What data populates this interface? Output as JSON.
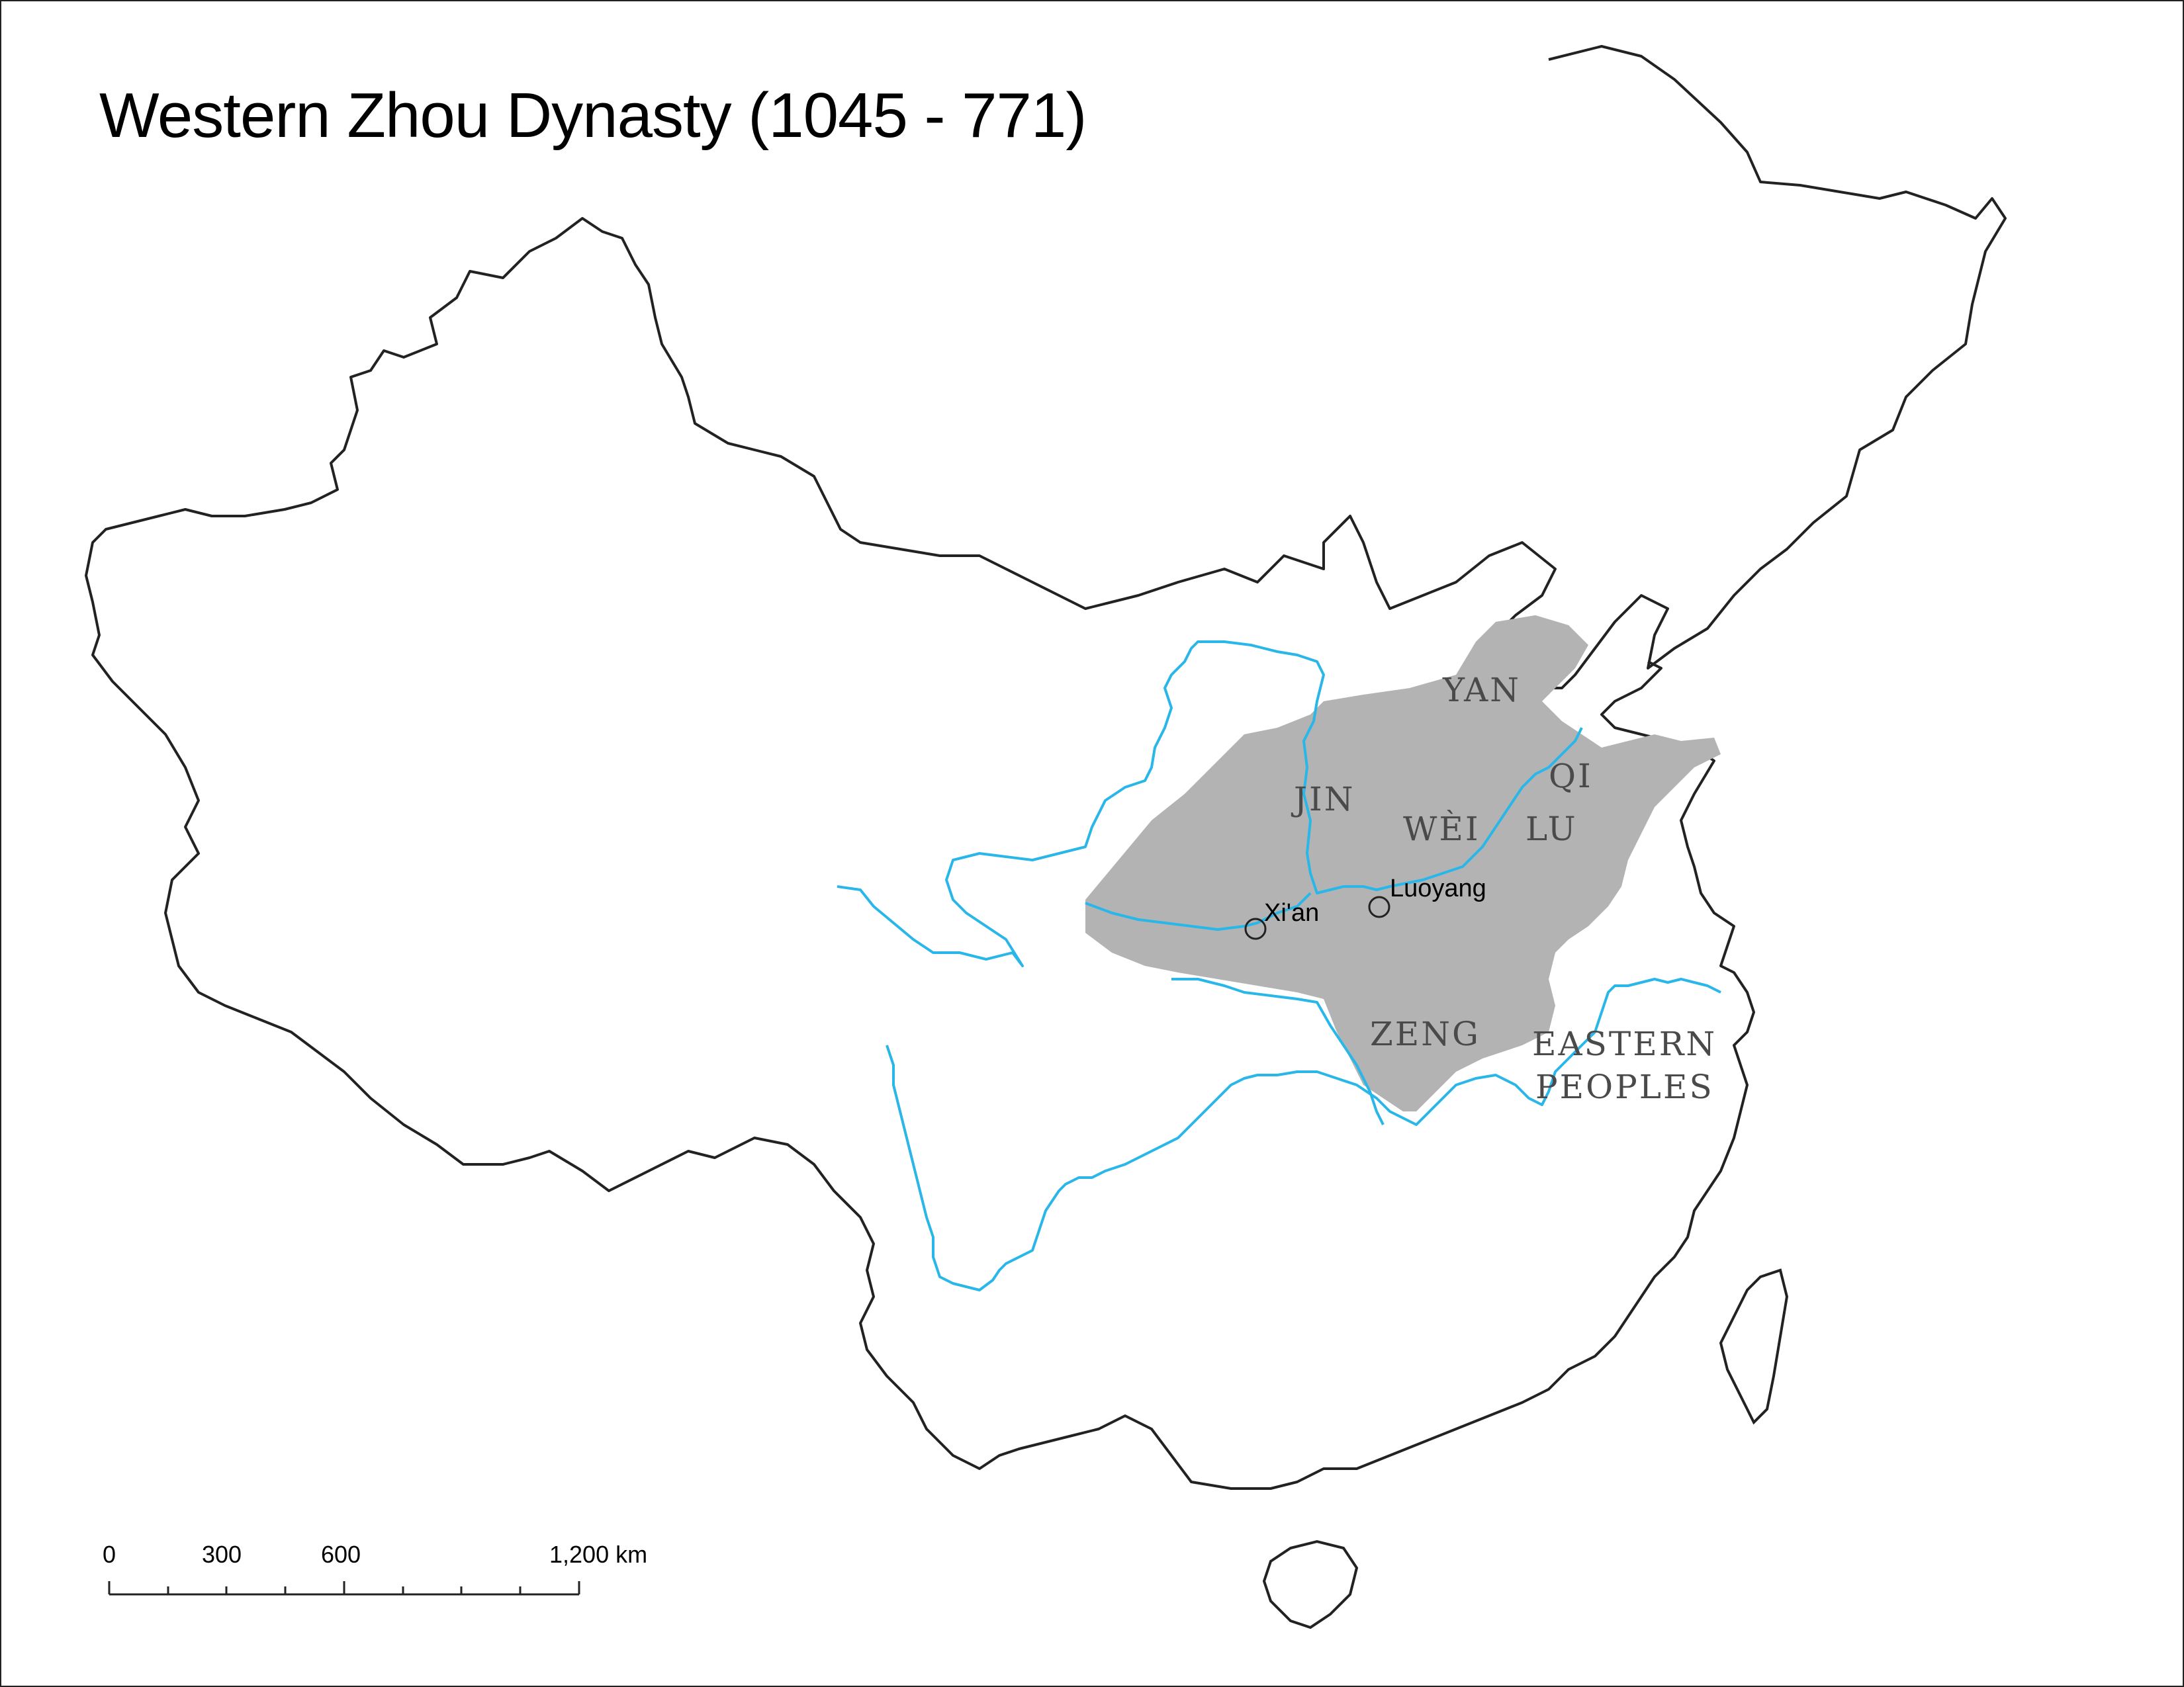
{
  "map": {
    "title": "Western Zhou Dynasty (1045 - 771)",
    "colors": {
      "border": "#222222",
      "river": "#29b6e8",
      "territory": "#b3b3b3",
      "label": "#4a4a4a"
    },
    "regions": [
      {
        "id": "yan",
        "label": "YAN"
      },
      {
        "id": "jin",
        "label": "JIN"
      },
      {
        "id": "wei",
        "label": "WÈI"
      },
      {
        "id": "qi",
        "label": "QI"
      },
      {
        "id": "lu",
        "label": "LU"
      },
      {
        "id": "zeng",
        "label": "ZENG"
      },
      {
        "id": "eastern_1",
        "label": "EASTERN"
      },
      {
        "id": "eastern_2",
        "label": "PEOPLES"
      }
    ],
    "cities": [
      {
        "id": "xian",
        "label": "Xi'an"
      },
      {
        "id": "luoyang",
        "label": "Luoyang"
      }
    ],
    "scale_bar": {
      "labels": [
        "0",
        "300",
        "600",
        "1,200 km"
      ]
    }
  }
}
